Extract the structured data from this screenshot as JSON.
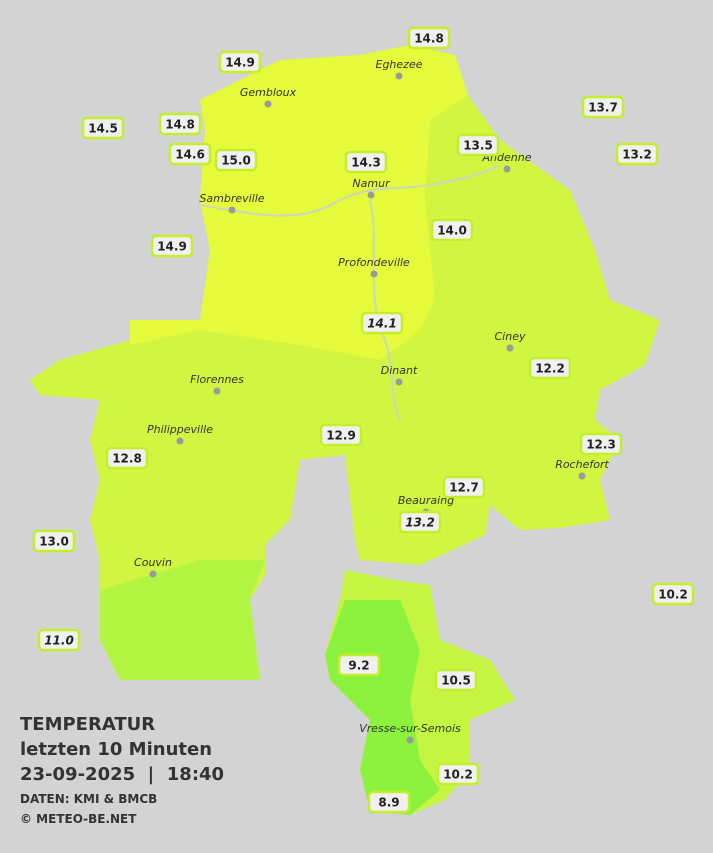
{
  "stations": [
    {
      "value": "14.8"
    },
    {
      "value": "14.9"
    },
    {
      "value": "13.7"
    },
    {
      "value": "14.5"
    },
    {
      "value": "14.8"
    },
    {
      "value": "13.5"
    },
    {
      "value": "14.6"
    },
    {
      "value": "15.0"
    },
    {
      "value": "14.3"
    },
    {
      "value": "13.2"
    },
    {
      "value": "14.0"
    },
    {
      "value": "14.9"
    },
    {
      "value": "14.1",
      "italic": true
    },
    {
      "value": "12.2"
    },
    {
      "value": "12.9"
    },
    {
      "value": "12.3"
    },
    {
      "value": "12.8"
    },
    {
      "value": "12.7"
    },
    {
      "value": "13.2",
      "italic": true
    },
    {
      "value": "13.0"
    },
    {
      "value": "10.2"
    },
    {
      "value": "11.0",
      "italic": true
    },
    {
      "value": "9.2"
    },
    {
      "value": "10.5"
    },
    {
      "value": "10.2"
    },
    {
      "value": "8.9"
    }
  ],
  "cities": [
    "Eghezee",
    "Gembloux",
    "Andenne",
    "Namur",
    "Sambreville",
    "Profondeville",
    "Ciney",
    "Dinant",
    "Florennes",
    "Philippeville",
    "Rochefort",
    "Beauraing",
    "Couvin",
    "Vresse-sur-Semois"
  ],
  "legend": {
    "title": "TEMPERATUR",
    "subtitle": "letzten 10 Minuten",
    "datetime": "23-09-2025  |  18:40",
    "source": "DATEN: KMI & BMCB",
    "copyright": "© METEO-BE.NET"
  }
}
